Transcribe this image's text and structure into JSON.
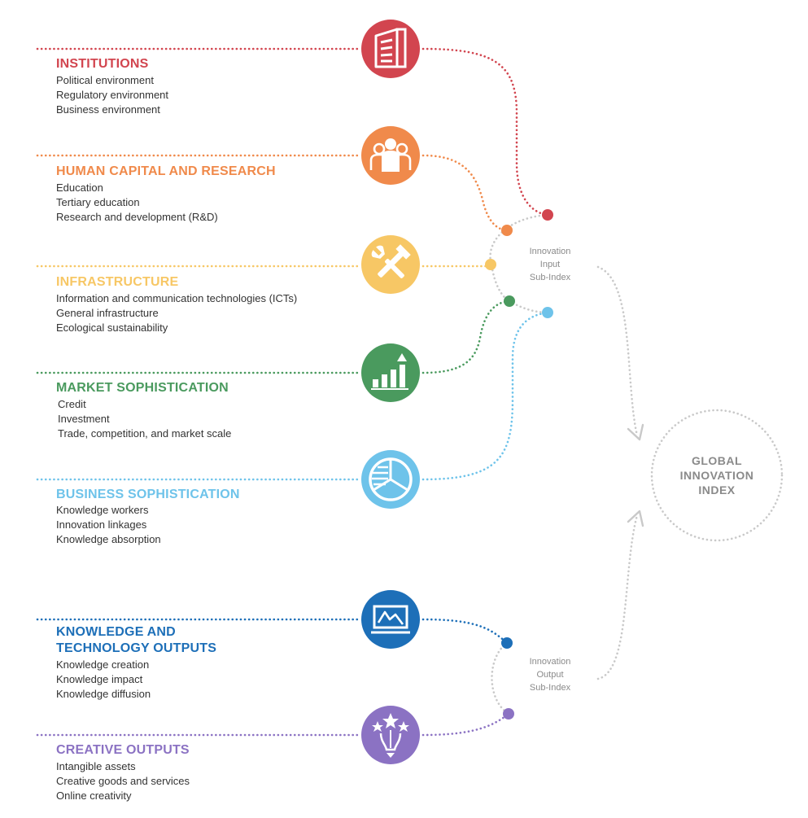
{
  "pillars": [
    {
      "id": "institutions",
      "color": "#d2454f",
      "icon": "building-icon",
      "title": [
        "INSTITUTIONS"
      ],
      "items": [
        "Political environment",
        "Regulatory environment",
        "Business environment"
      ]
    },
    {
      "id": "human-capital",
      "color": "#f08a4b",
      "icon": "people-icon",
      "title": [
        "HUMAN CAPITAL AND RESEARCH"
      ],
      "items": [
        "Education",
        "Tertiary education",
        "Research and development (R&D)"
      ]
    },
    {
      "id": "infrastructure",
      "color": "#f7c765",
      "icon": "tools-icon",
      "title": [
        "INFRASTRUCTURE"
      ],
      "items": [
        "Information and communication technologies (ICTs)",
        "General infrastructure",
        "Ecological sustainability"
      ]
    },
    {
      "id": "market",
      "color": "#4a9a5e",
      "icon": "growth-chart-icon",
      "title": [
        "MARKET SOPHISTICATION"
      ],
      "items": [
        "Credit",
        "Investment",
        "Trade, competition, and market scale"
      ]
    },
    {
      "id": "business",
      "color": "#6ec3ea",
      "icon": "pie-chart-icon",
      "title": [
        "BUSINESS SOPHISTICATION"
      ],
      "items": [
        "Knowledge workers",
        "Innovation linkages",
        "Knowledge absorption"
      ]
    },
    {
      "id": "knowledge",
      "color": "#1d6fb8",
      "icon": "monitor-chart-icon",
      "title": [
        "KNOWLEDGE AND",
        "TECHNOLOGY OUTPUTS"
      ],
      "items": [
        "Knowledge creation",
        "Knowledge impact",
        "Knowledge diffusion"
      ]
    },
    {
      "id": "creative",
      "color": "#8b72c3",
      "icon": "creative-stars-icon",
      "title": [
        "CREATIVE OUTPUTS"
      ],
      "items": [
        "Intangible assets",
        "Creative goods and services",
        "Online creativity"
      ]
    }
  ],
  "input_subindex": [
    "Innovation",
    "Input",
    "Sub-Index"
  ],
  "output_subindex": [
    "Innovation",
    "Output",
    "Sub-Index"
  ],
  "gii": [
    "GLOBAL",
    "INNOVATION",
    "INDEX"
  ]
}
